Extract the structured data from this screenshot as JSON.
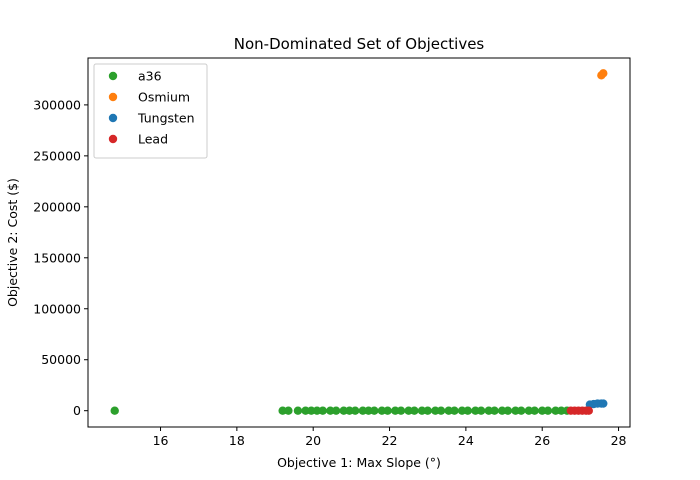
{
  "chart_data": {
    "type": "scatter",
    "title": "Non-Dominated Set of Objectives",
    "xlabel": "Objective 1: Max Slope (°)",
    "ylabel": "Objective 2: Cost ($)",
    "xlim": [
      14.1,
      28.3
    ],
    "ylim": [
      -16000,
      346000
    ],
    "xticks": [
      16,
      18,
      20,
      22,
      24,
      26,
      28
    ],
    "yticks": [
      0,
      50000,
      100000,
      150000,
      200000,
      250000,
      300000
    ],
    "grid": false,
    "legend_position": "top-left",
    "series": [
      {
        "name": "a36",
        "color": "#2ca02c",
        "x": [
          14.8,
          19.2,
          19.35,
          19.6,
          19.8,
          19.95,
          20.1,
          20.25,
          20.45,
          20.6,
          20.8,
          20.95,
          21.1,
          21.3,
          21.45,
          21.6,
          21.8,
          21.95,
          22.15,
          22.3,
          22.5,
          22.65,
          22.85,
          23.0,
          23.2,
          23.35,
          23.55,
          23.7,
          23.9,
          24.05,
          24.25,
          24.4,
          24.6,
          24.75,
          24.95,
          25.1,
          25.3,
          25.45,
          25.65,
          25.8,
          26.0,
          26.15,
          26.35,
          26.5,
          26.65
        ],
        "y": [
          0,
          0,
          0,
          0,
          0,
          0,
          0,
          0,
          0,
          0,
          0,
          0,
          0,
          0,
          0,
          0,
          0,
          0,
          0,
          0,
          0,
          0,
          0,
          0,
          0,
          0,
          0,
          0,
          0,
          0,
          0,
          0,
          0,
          0,
          0,
          0,
          0,
          0,
          0,
          0,
          0,
          0,
          0,
          0,
          0
        ]
      },
      {
        "name": "Osmium",
        "color": "#ff7f0e",
        "x": [
          27.55,
          27.6
        ],
        "y": [
          329000,
          331000
        ]
      },
      {
        "name": "Tungsten",
        "color": "#1f77b4",
        "x": [
          27.25,
          27.35,
          27.45,
          27.55,
          27.6
        ],
        "y": [
          6000,
          6500,
          7000,
          7000,
          7000
        ]
      },
      {
        "name": "Lead",
        "color": "#d62728",
        "x": [
          26.75,
          26.85,
          26.95,
          27.05,
          27.15,
          27.22
        ],
        "y": [
          0,
          0,
          0,
          0,
          0,
          0
        ]
      }
    ]
  }
}
